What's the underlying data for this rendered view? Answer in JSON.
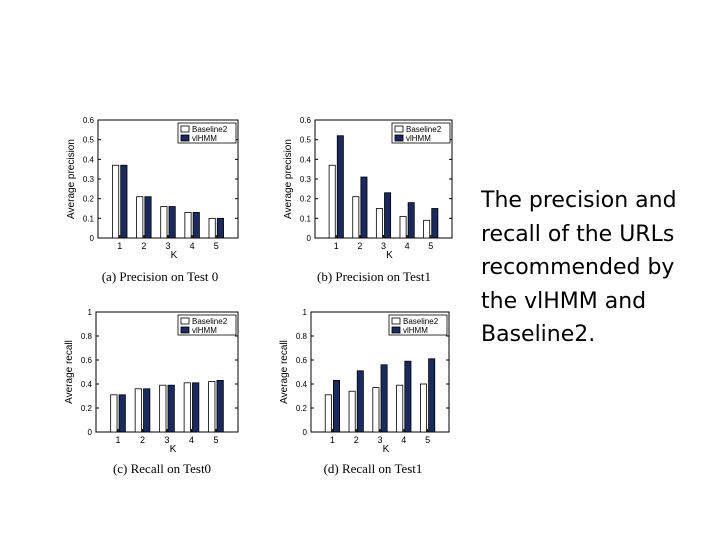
{
  "slide_text": {
    "lines": [
      "The precision and",
      "recall of the URLs",
      "recommended by",
      "the vlHMM and",
      "Baseline2."
    ]
  },
  "colors": {
    "vlhmm": "#1a2a5e",
    "baseline": "#ffffff",
    "axis": "#000000"
  },
  "chart_data": [
    {
      "type": "bar",
      "panel": "a",
      "title": "(a) Precision on Test 0",
      "xlabel": "K",
      "ylabel": "Average precision",
      "categories": [
        "1",
        "2",
        "3",
        "4",
        "5"
      ],
      "yticks": [
        "0",
        "0.1",
        "0.2",
        "0.3",
        "0.4",
        "0.5",
        "0.6"
      ],
      "ylim": [
        0,
        0.6
      ],
      "legend_position": "top-right",
      "series": [
        {
          "name": "Baseline2",
          "values": [
            0.37,
            0.21,
            0.16,
            0.13,
            0.1
          ]
        },
        {
          "name": "vlHMM",
          "values": [
            0.37,
            0.21,
            0.16,
            0.13,
            0.1
          ]
        }
      ]
    },
    {
      "type": "bar",
      "panel": "b",
      "title": "(b) Precision on Test1",
      "xlabel": "K",
      "ylabel": "Average precision",
      "categories": [
        "1",
        "2",
        "3",
        "4",
        "5"
      ],
      "yticks": [
        "0",
        "0.1",
        "0.2",
        "0.3",
        "0.4",
        "0.5",
        "0.6"
      ],
      "ylim": [
        0,
        0.6
      ],
      "legend_position": "top-right",
      "series": [
        {
          "name": "Baseline2",
          "values": [
            0.37,
            0.21,
            0.15,
            0.11,
            0.09
          ]
        },
        {
          "name": "vlHMM",
          "values": [
            0.52,
            0.31,
            0.23,
            0.18,
            0.15
          ]
        }
      ]
    },
    {
      "type": "bar",
      "panel": "c",
      "title": "(c) Recall on Test0",
      "xlabel": "K",
      "ylabel": "Average recall",
      "categories": [
        "1",
        "2",
        "3",
        "4",
        "5"
      ],
      "yticks": [
        "0",
        "0.2",
        "0.4",
        "0.6",
        "0.8",
        "1"
      ],
      "ylim": [
        0,
        1
      ],
      "legend_position": "top-right",
      "series": [
        {
          "name": "Baseline2",
          "values": [
            0.31,
            0.36,
            0.39,
            0.41,
            0.42
          ]
        },
        {
          "name": "vlHMM",
          "values": [
            0.31,
            0.36,
            0.39,
            0.41,
            0.43
          ]
        }
      ]
    },
    {
      "type": "bar",
      "panel": "d",
      "title": "(d) Recall on Test1",
      "xlabel": "K",
      "ylabel": "Average recall",
      "categories": [
        "1",
        "2",
        "3",
        "4",
        "5"
      ],
      "yticks": [
        "0",
        "0.2",
        "0.4",
        "0.6",
        "0.8",
        "1"
      ],
      "ylim": [
        0,
        1
      ],
      "legend_position": "top-right",
      "series": [
        {
          "name": "Baseline2",
          "values": [
            0.31,
            0.34,
            0.37,
            0.39,
            0.4
          ]
        },
        {
          "name": "vlHMM",
          "values": [
            0.43,
            0.51,
            0.56,
            0.59,
            0.61
          ]
        }
      ]
    }
  ]
}
